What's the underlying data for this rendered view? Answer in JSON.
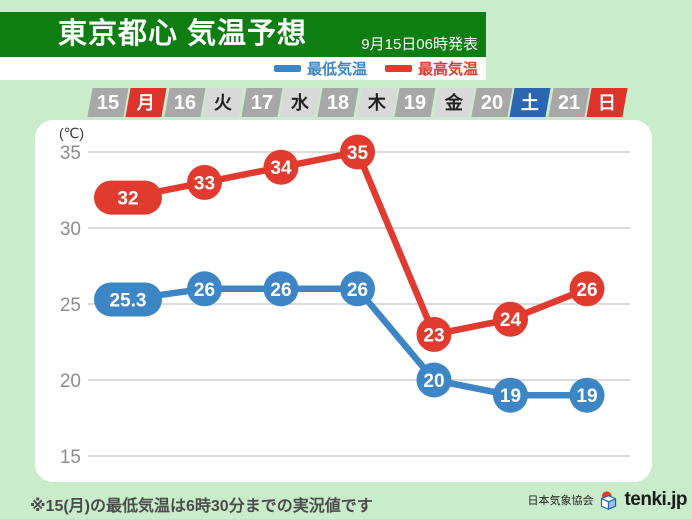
{
  "header": {
    "title": "東京都心 気温予想",
    "announced": "9月15日06時発表"
  },
  "legend": {
    "min_label": "最低気温",
    "max_label": "最高気温"
  },
  "colors": {
    "background": "#c9ecca",
    "header_green": "#0e7d12",
    "min_blue": "#3d86c6",
    "max_red": "#e13b2f",
    "tile_num_gray": "#a8a8a8",
    "tile_day_gray": "#d9d9d9",
    "tile_red": "#dc342b",
    "tile_blue": "#2b67b1",
    "grid": "#cfcfcf",
    "tick_text": "#8d8d8d"
  },
  "date_row": {
    "days": [
      {
        "num": "15",
        "day": "月",
        "day_bg": "#dc342b",
        "day_fg": "#ffffff"
      },
      {
        "num": "16",
        "day": "火",
        "day_bg": "#d9d9d9",
        "day_fg": "#222222"
      },
      {
        "num": "17",
        "day": "水",
        "day_bg": "#d9d9d9",
        "day_fg": "#222222"
      },
      {
        "num": "18",
        "day": "木",
        "day_bg": "#d9d9d9",
        "day_fg": "#222222"
      },
      {
        "num": "19",
        "day": "金",
        "day_bg": "#d9d9d9",
        "day_fg": "#222222"
      },
      {
        "num": "20",
        "day": "土",
        "day_bg": "#2b67b1",
        "day_fg": "#ffffff"
      },
      {
        "num": "21",
        "day": "日",
        "day_bg": "#dc342b",
        "day_fg": "#ffffff"
      }
    ]
  },
  "chart_data": {
    "type": "line",
    "title": "東京都心 気温予想",
    "categories": [
      "15月",
      "16火",
      "17水",
      "18木",
      "19金",
      "20土",
      "21日"
    ],
    "series": [
      {
        "key": "min-temp",
        "name": "最低気温",
        "color": "#3d86c6",
        "values": [
          25.3,
          26,
          26,
          26,
          20,
          19,
          19
        ]
      },
      {
        "key": "max-temp",
        "name": "最高気温",
        "color": "#e13b2f",
        "values": [
          32,
          33,
          34,
          35,
          23,
          24,
          26
        ]
      }
    ],
    "ylabel": "(℃)",
    "yticks": [
      35,
      30,
      25,
      20,
      15
    ],
    "ylim": [
      13.3,
      37.2
    ],
    "grid": true,
    "legend_position": "top"
  },
  "icons": {
    "brand_logo": "jwa-cube-logo-icon"
  },
  "footer": {
    "note": "※15(月)の最低気温は6時30分までの実況値です",
    "association": "日本気象協会",
    "brand": "tenki.jp"
  }
}
